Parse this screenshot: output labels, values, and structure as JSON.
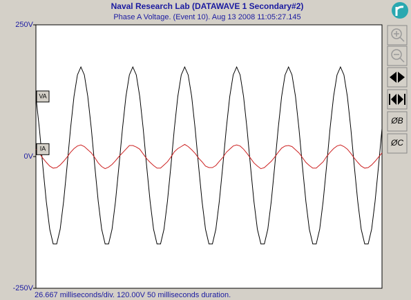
{
  "chart_data": {
    "type": "line",
    "title": "Naval Research Lab (DATAWAVE 1 Secondary#2)",
    "subtitle": "Phase A Voltage. (Event 10). Aug 13 2008 11:05:27.145",
    "footer": "26.667 milliseconds/div.  120.00V  50 milliseconds duration.",
    "x": [
      0,
      0.5,
      1,
      1.5,
      2,
      2.5,
      3,
      3.5,
      4,
      4.5,
      5,
      5.5,
      6,
      6.5,
      7,
      7.5,
      8,
      8.5,
      9,
      9.5,
      10,
      10.5,
      11,
      11.5,
      12,
      12.5,
      13,
      13.5,
      14,
      14.5,
      15,
      15.5,
      16,
      16.5,
      17,
      17.5,
      18,
      18.5,
      19,
      19.5,
      20,
      20.5,
      21,
      21.5,
      22,
      22.5,
      23,
      23.5,
      24,
      24.5,
      25,
      25.5,
      26,
      26.5,
      27,
      27.5,
      28,
      28.5,
      29,
      29.5,
      30,
      30.5,
      31,
      31.5,
      32,
      32.5,
      33,
      33.5,
      34,
      34.5,
      35,
      35.5,
      36,
      36.5,
      37,
      37.5,
      38,
      38.5,
      39,
      39.5,
      40,
      40.5,
      41,
      41.5,
      42,
      42.5,
      43,
      43.5,
      44,
      44.5,
      45,
      45.5,
      46,
      46.5,
      47,
      47.5,
      48,
      48.5,
      49,
      49.5,
      50
    ],
    "series": [
      {
        "name": "VA",
        "color": "#000000",
        "values": [
          114,
          53,
          -18,
          -85,
          -138,
          -166,
          -166,
          -138,
          -85,
          -18,
          53,
          114,
          155,
          170,
          155,
          114,
          53,
          -18,
          -85,
          -138,
          -166,
          -166,
          -138,
          -85,
          -18,
          53,
          114,
          155,
          170,
          155,
          114,
          53,
          -18,
          -85,
          -138,
          -166,
          -166,
          -138,
          -85,
          -18,
          53,
          114,
          155,
          170,
          155,
          114,
          53,
          -18,
          -85,
          -138,
          -166,
          -166,
          -138,
          -85,
          -18,
          53,
          114,
          155,
          170,
          155,
          114,
          53,
          -18,
          -85,
          -138,
          -166,
          -166,
          -138,
          -85,
          -18,
          53,
          114,
          155,
          170,
          155,
          114,
          53,
          -18,
          -85,
          -138,
          -166,
          -166,
          -138,
          -85,
          -18,
          53,
          114,
          155,
          170,
          155,
          114,
          53,
          -18,
          -85,
          -138,
          -166,
          -166,
          -138,
          -85,
          -18,
          53
        ]
      },
      {
        "name": "IA",
        "color": "#cc2020",
        "values": [
          14,
          6,
          -3,
          -11,
          -18,
          -22,
          -21,
          -16,
          -9,
          -1,
          8,
          15,
          20,
          22,
          19,
          13,
          7,
          -2,
          -12,
          -19,
          -23,
          -20,
          -15,
          -8,
          0,
          7,
          14,
          21,
          21,
          18,
          14,
          5,
          -4,
          -11,
          -17,
          -22,
          -22,
          -16,
          -10,
          -1,
          9,
          15,
          19,
          23,
          19,
          13,
          6,
          -3,
          -10,
          -18,
          -21,
          -21,
          -17,
          -9,
          -2,
          8,
          14,
          20,
          22,
          20,
          14,
          6,
          -3,
          -12,
          -18,
          -23,
          -21,
          -15,
          -9,
          -1,
          8,
          16,
          20,
          21,
          19,
          13,
          7,
          -2,
          -11,
          -17,
          -22,
          -22,
          -16,
          -10,
          0,
          8,
          15,
          20,
          22,
          19,
          14,
          6,
          -3,
          -11,
          -18,
          -22,
          -21,
          -16,
          -9,
          -1,
          7
        ]
      }
    ],
    "xlim": [
      0,
      50
    ],
    "ylim": [
      -250,
      250
    ],
    "yticks": [
      {
        "value": 250,
        "label": "250V"
      },
      {
        "value": 0,
        "label": "0V"
      },
      {
        "value": -250,
        "label": "-250V"
      }
    ]
  },
  "toolbar": {
    "phase_buttons": [
      "ØB",
      "ØC"
    ]
  }
}
